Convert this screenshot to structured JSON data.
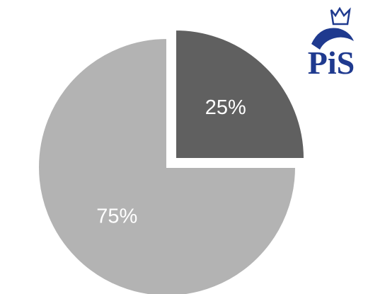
{
  "chart_data": {
    "type": "pie",
    "categories": [
      null,
      null
    ],
    "values": [
      25,
      75
    ],
    "value_labels": [
      "25%",
      "75%"
    ],
    "colors": [
      "#606060",
      "#b3b3b3"
    ],
    "exploded": [
      true,
      false
    ]
  },
  "logo": {
    "text": "PiS"
  }
}
